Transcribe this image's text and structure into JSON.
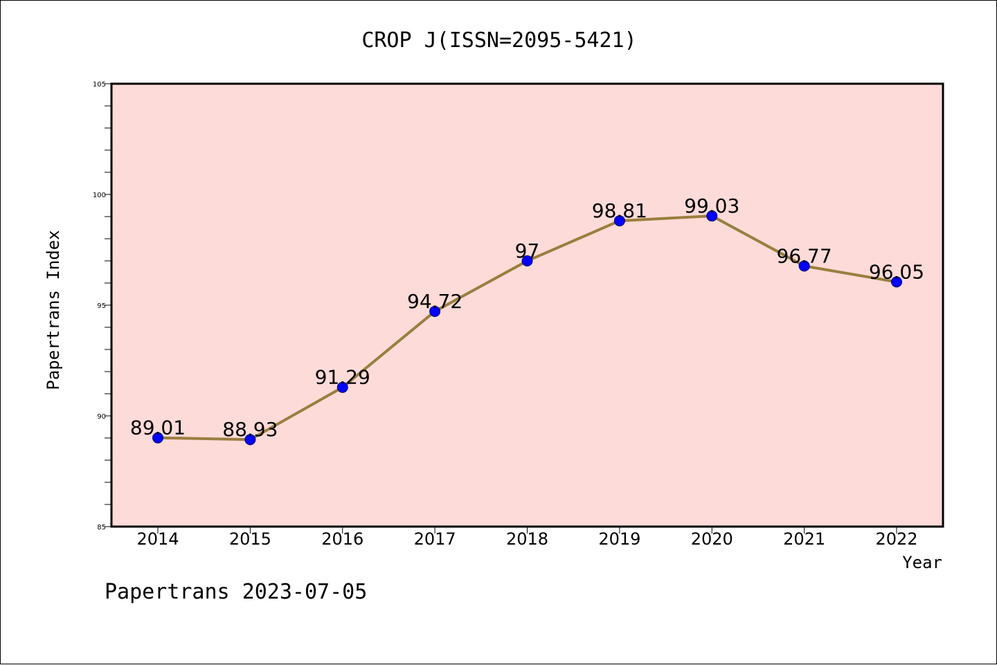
{
  "footer": "Papertrans 2023-07-05",
  "colors": {
    "plot_background": "#fddbd8",
    "line": "#9a7e3e",
    "marker": "#0000ff",
    "axis": "#000000"
  },
  "chart_data": {
    "type": "line",
    "title": "CROP J(ISSN=2095-5421)",
    "xlabel": "Year",
    "ylabel": "Papertrans Index",
    "categories": [
      "2014",
      "2015",
      "2016",
      "2017",
      "2018",
      "2019",
      "2020",
      "2021",
      "2022"
    ],
    "series": [
      {
        "values": [
          89.01,
          88.93,
          91.29,
          94.72,
          97,
          98.81,
          99.03,
          96.77,
          96.05
        ],
        "labels": [
          "89.01",
          "88.93",
          "91.29",
          "94.72",
          "97",
          "98.81",
          "99.03",
          "96.77",
          "96.05"
        ]
      }
    ],
    "ylim": [
      85,
      105
    ],
    "yticks": [
      "85",
      "90",
      "95",
      "100",
      "105"
    ],
    "grid": false,
    "legend": "none"
  }
}
